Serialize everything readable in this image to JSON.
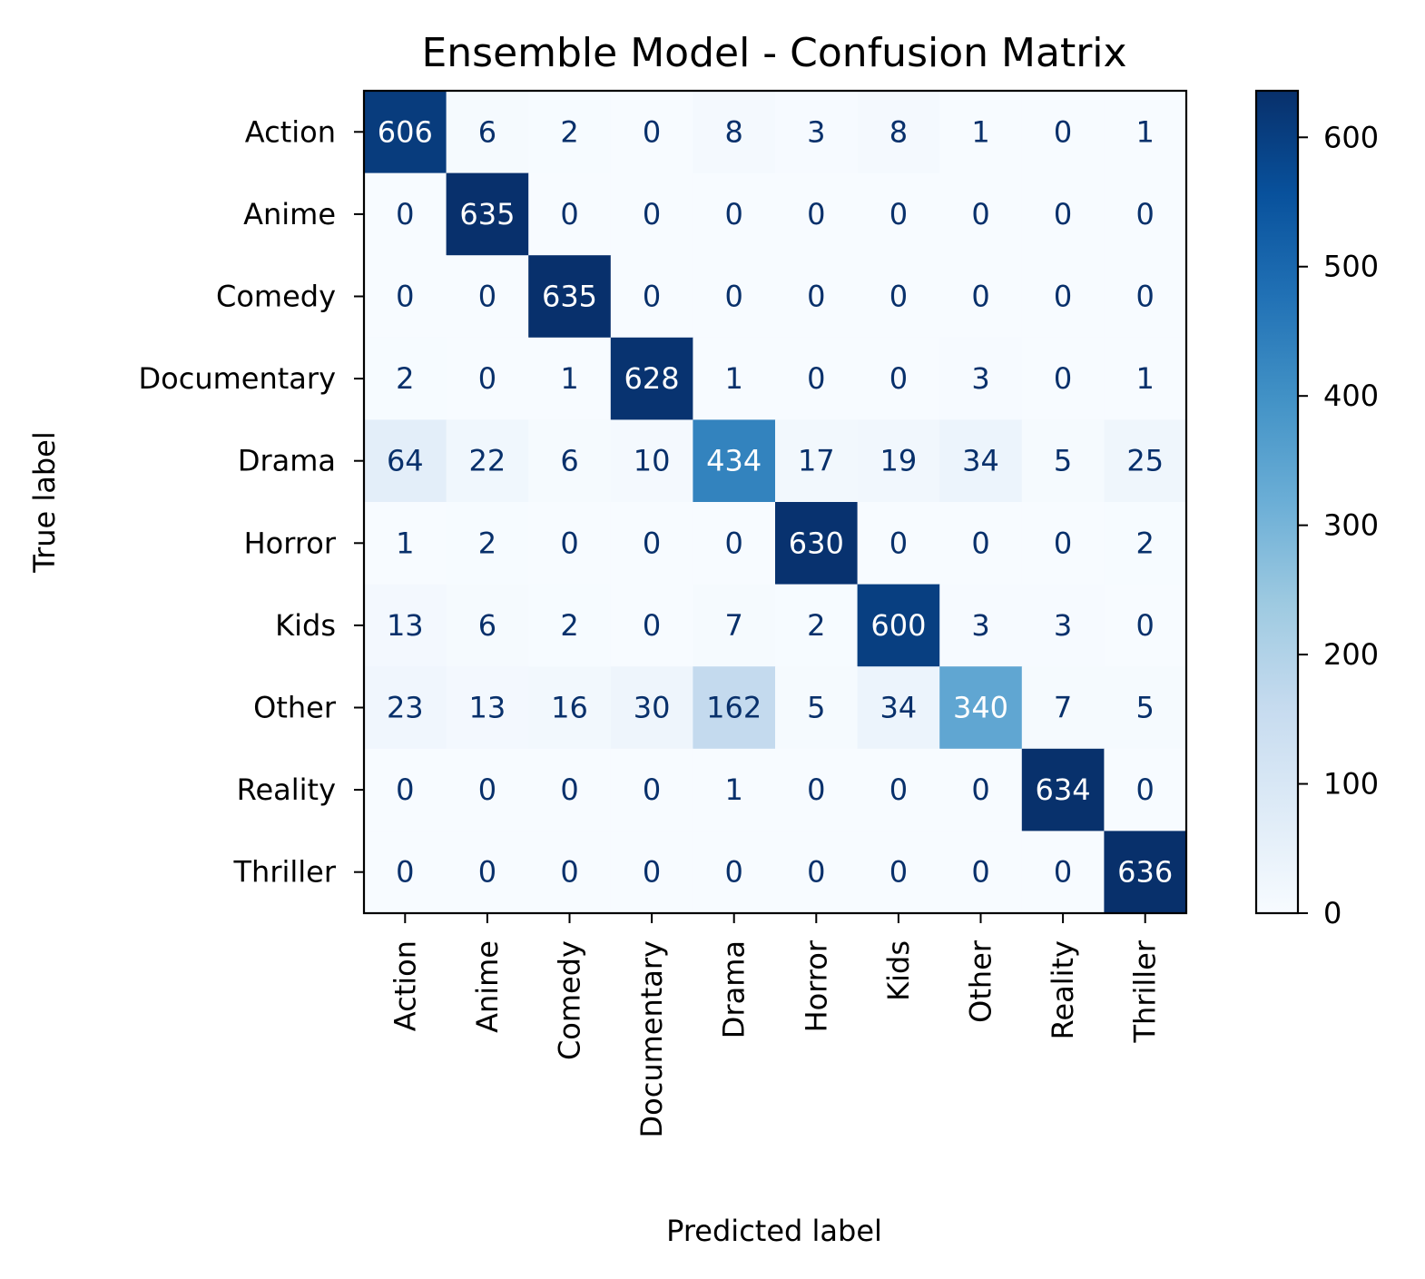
{
  "chart_data": {
    "type": "heatmap",
    "title": "Ensemble Model - Confusion Matrix",
    "xlabel": "Predicted label",
    "ylabel": "True label",
    "x_categories": [
      "Action",
      "Anime",
      "Comedy",
      "Documentary",
      "Drama",
      "Horror",
      "Kids",
      "Other",
      "Reality",
      "Thriller"
    ],
    "y_categories": [
      "Action",
      "Anime",
      "Comedy",
      "Documentary",
      "Drama",
      "Horror",
      "Kids",
      "Other",
      "Reality",
      "Thriller"
    ],
    "matrix": [
      [
        606,
        6,
        2,
        0,
        8,
        3,
        8,
        1,
        0,
        1
      ],
      [
        0,
        635,
        0,
        0,
        0,
        0,
        0,
        0,
        0,
        0
      ],
      [
        0,
        0,
        635,
        0,
        0,
        0,
        0,
        0,
        0,
        0
      ],
      [
        2,
        0,
        1,
        628,
        1,
        0,
        0,
        3,
        0,
        1
      ],
      [
        64,
        22,
        6,
        10,
        434,
        17,
        19,
        34,
        5,
        25
      ],
      [
        1,
        2,
        0,
        0,
        0,
        630,
        0,
        0,
        0,
        2
      ],
      [
        13,
        6,
        2,
        0,
        7,
        2,
        600,
        3,
        3,
        0
      ],
      [
        23,
        13,
        16,
        30,
        162,
        5,
        34,
        340,
        7,
        5
      ],
      [
        0,
        0,
        0,
        0,
        1,
        0,
        0,
        0,
        634,
        0
      ],
      [
        0,
        0,
        0,
        0,
        0,
        0,
        0,
        0,
        0,
        636
      ]
    ],
    "colormap": "Blues",
    "colorbar": {
      "min": 0,
      "max": 636,
      "ticks": [
        0,
        100,
        200,
        300,
        400,
        500,
        600
      ]
    },
    "grid": false,
    "legend": "colorbar-right"
  }
}
